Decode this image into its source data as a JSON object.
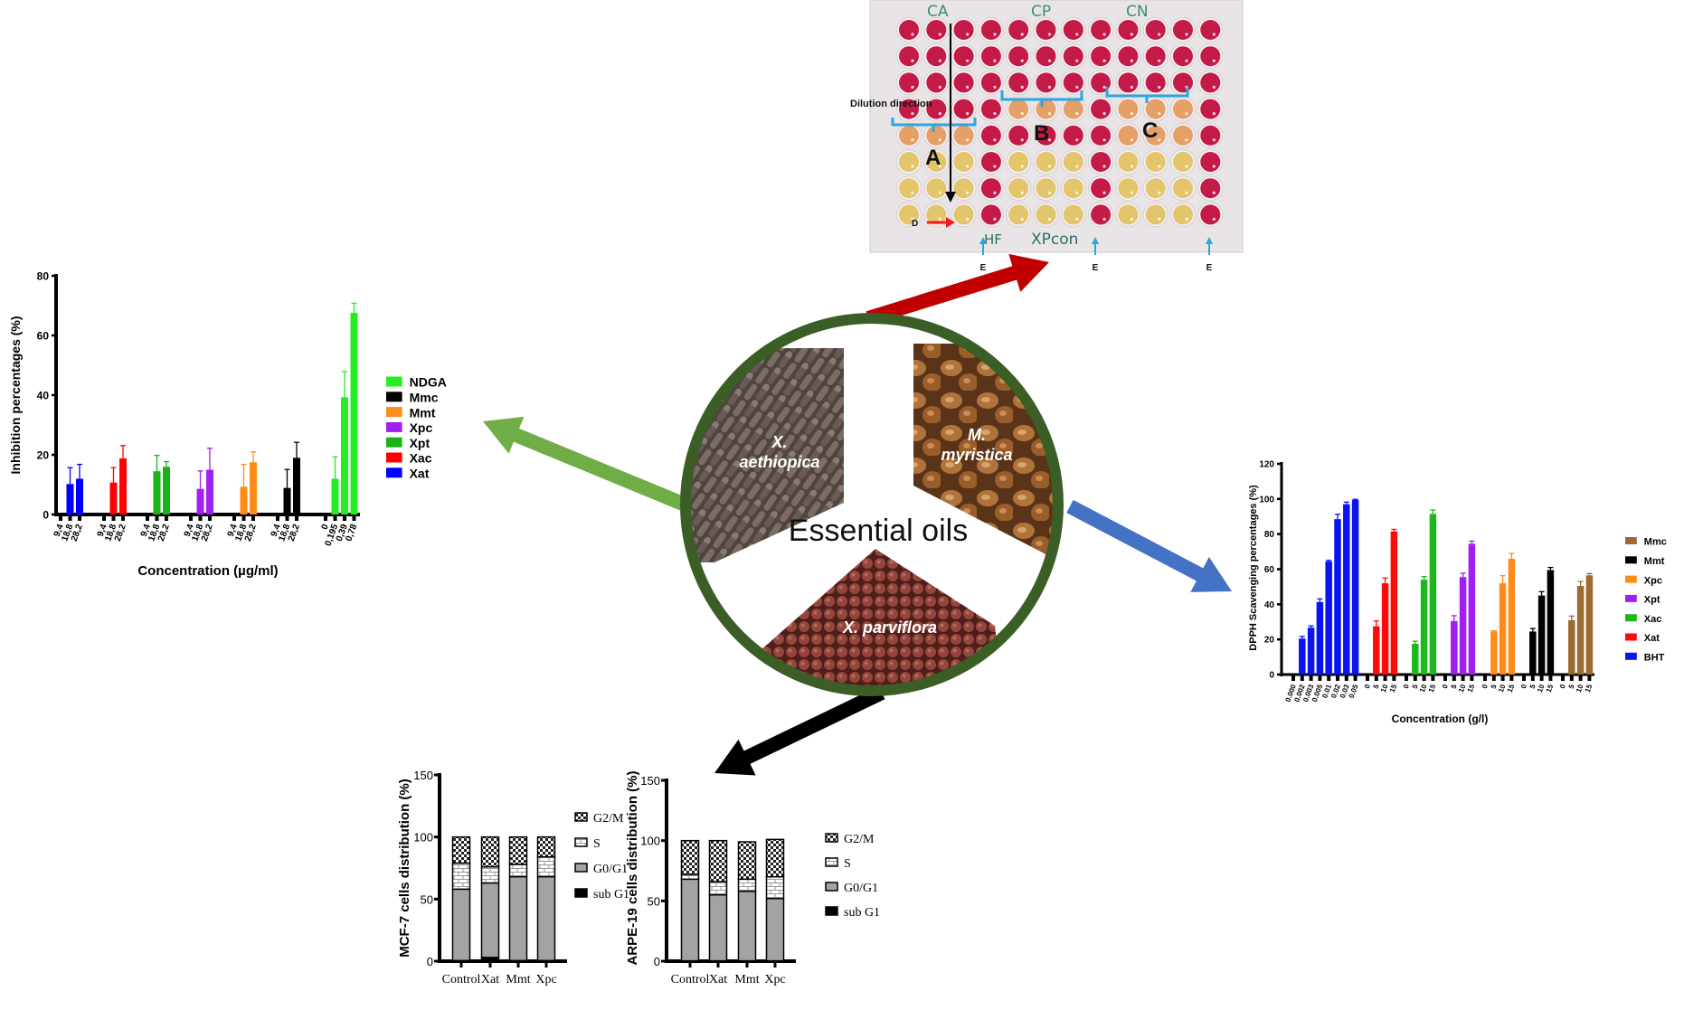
{
  "center": {
    "title": "Essential oils",
    "species": [
      "X. aethiopica",
      "M. myristica",
      "X. parviflora"
    ],
    "ring_color": "#3b5e27"
  },
  "arrows": {
    "to_plate": "#c00000",
    "to_lox_chart": "#70ad47",
    "to_dpph_chart": "#4472c4",
    "to_cell_cycle": "#000000"
  },
  "plate": {
    "column_labels": [
      "CA",
      "CP",
      "CN"
    ],
    "bottom_labels": [
      "HF",
      "XPcon"
    ],
    "dilution_label": "Dilution direction",
    "zones": [
      "A",
      "B",
      "C"
    ],
    "d_label": "D",
    "e_label": "E",
    "well_colors": {
      "R": "#c41a48",
      "O": "#e4a067",
      "Y": "#e3c56c"
    },
    "rows": [
      "RRRRRRRRRRRR",
      "RRRRRRRRRRRR",
      "RRRRRRRRRRRR",
      "RRRROOOROOOR",
      "OOORRRRROOOR",
      "YYYRYYYRYYYR",
      "YYYRYYYRYYYR",
      "YYYRYYYRYYYR"
    ]
  },
  "chart_data": [
    {
      "type": "bar",
      "ylabel": "Inhibition percentages (%)",
      "xlabel": "Concentration (µg/ml)",
      "ylim": [
        0,
        80
      ],
      "yticks": [
        0,
        20,
        40,
        60,
        80
      ],
      "legend": "right",
      "legend_order": [
        "NDGA",
        "Mmc",
        "Mmt",
        "Xpc",
        "Xpt",
        "Xac",
        "Xat"
      ],
      "series": [
        {
          "name": "Xat",
          "color": "#0000ff",
          "x": [
            "9,4",
            "18,8",
            "28,2"
          ],
          "values": [
            0,
            10.2,
            12
          ],
          "error": [
            0,
            5.5,
            4.8
          ]
        },
        {
          "name": "Xac",
          "color": "#ff0000",
          "x": [
            "9,4",
            "18,8",
            "28,2"
          ],
          "values": [
            0,
            10.7,
            18.8
          ],
          "error": [
            0,
            5.0,
            4.3
          ]
        },
        {
          "name": "Xpt",
          "color": "#19b319",
          "x": [
            "9,4",
            "18,8",
            "28,2"
          ],
          "values": [
            0,
            14.5,
            16
          ],
          "error": [
            0,
            5.3,
            1.7
          ]
        },
        {
          "name": "Xpc",
          "color": "#a020f0",
          "x": [
            "9,4",
            "18,8",
            "28,2"
          ],
          "values": [
            0,
            8.6,
            15
          ],
          "error": [
            0,
            6.0,
            7.2
          ]
        },
        {
          "name": "Mmt",
          "color": "#ff8c1a",
          "x": [
            "9,4",
            "18,8",
            "28,2"
          ],
          "values": [
            0,
            9.3,
            17.5
          ],
          "error": [
            0,
            7.5,
            3.5
          ]
        },
        {
          "name": "Mmc",
          "color": "#000000",
          "x": [
            "9,4",
            "18,8",
            "28,2"
          ],
          "values": [
            0,
            8.9,
            19
          ],
          "error": [
            0,
            6.2,
            5.2
          ]
        },
        {
          "name": "NDGA",
          "color": "#22ee22",
          "x": [
            "0",
            "0,195",
            "0,39",
            "0,78"
          ],
          "values": [
            0,
            12,
            39.3,
            67.6
          ],
          "error": [
            0,
            7.3,
            8.6,
            3.2
          ]
        }
      ]
    },
    {
      "type": "bar",
      "ylabel": "DPPH Scavenging percentages (%)",
      "xlabel": "Concentration (g/l)",
      "ylim": [
        0,
        120
      ],
      "yticks": [
        0,
        20,
        40,
        60,
        80,
        100,
        120
      ],
      "legend": "right",
      "legend_order": [
        "Mmc",
        "Mmt",
        "Xpc",
        "Xpt",
        "Xac",
        "Xat",
        "BHT"
      ],
      "series": [
        {
          "name": "BHT",
          "color": "#0a14f0",
          "x": [
            "0.000",
            "0.002",
            "0.003",
            "0.005",
            "0.01",
            "0.02",
            "0.03",
            "0.05"
          ],
          "values": [
            0,
            20.5,
            26.7,
            41.3,
            64.5,
            88.5,
            97,
            99.5
          ],
          "error": [
            0,
            1.2,
            1.0,
            1.8,
            0.6,
            2.8,
            1.2,
            0.3
          ]
        },
        {
          "name": "Xat",
          "color": "#ff0a0a",
          "x": [
            "0",
            "5",
            "10",
            "15"
          ],
          "values": [
            0,
            27.5,
            52,
            81.5
          ],
          "error": [
            0,
            3.0,
            3.0,
            1.2
          ]
        },
        {
          "name": "Xac",
          "color": "#1db81d",
          "x": [
            "0",
            "5",
            "10",
            "15"
          ],
          "values": [
            0,
            17.5,
            54,
            91.5
          ],
          "error": [
            0,
            1.5,
            1.8,
            2.2
          ]
        },
        {
          "name": "Xpt",
          "color": "#a020f0",
          "x": [
            "0",
            "5",
            "10",
            "15"
          ],
          "values": [
            0,
            30.5,
            55.5,
            74.5
          ],
          "error": [
            0,
            3.0,
            2.2,
            1.5
          ]
        },
        {
          "name": "Xpc",
          "color": "#ff8c1a",
          "x": [
            "0",
            "5",
            "10",
            "15"
          ],
          "values": [
            0,
            24.5,
            52,
            66
          ],
          "error": [
            0,
            0.4,
            4.3,
            3.0
          ]
        },
        {
          "name": "Mmt",
          "color": "#000000",
          "x": [
            "0",
            "5",
            "10",
            "15"
          ],
          "values": [
            0,
            24.5,
            45,
            59.5
          ],
          "error": [
            0,
            1.7,
            2.2,
            1.5
          ]
        },
        {
          "name": "Mmc",
          "color": "#9c6b2f",
          "x": [
            "0",
            "5",
            "10",
            "15"
          ],
          "values": [
            0,
            31,
            50.5,
            56.5
          ],
          "error": [
            0,
            2.3,
            2.5,
            1.0
          ]
        }
      ]
    },
    {
      "type": "stacked-bar",
      "ylabel": "MCF-7 cells distribution  (%)",
      "ylim": [
        0,
        150
      ],
      "yticks": [
        0,
        50,
        100,
        150
      ],
      "legend": "right",
      "categories": [
        "Control",
        "Xat",
        "Mmt",
        "Xpc"
      ],
      "legend_order": [
        "G2/M",
        "S",
        "G0/G1",
        "sub G1"
      ],
      "series": [
        {
          "name": "sub G1",
          "values": [
            0.5,
            3,
            0.5,
            0.5
          ]
        },
        {
          "name": "G0/G1",
          "values": [
            57.5,
            60,
            67.5,
            67.5
          ]
        },
        {
          "name": "S",
          "values": [
            21,
            13,
            10,
            16
          ]
        },
        {
          "name": "G2/M",
          "values": [
            21,
            24,
            22,
            16
          ]
        }
      ]
    },
    {
      "type": "stacked-bar",
      "ylabel": "ARPE-19 cells distribution  (%)",
      "ylim": [
        0,
        150
      ],
      "yticks": [
        0,
        50,
        100,
        150
      ],
      "legend": "right",
      "categories": [
        "Control",
        "Xat",
        "Mmt",
        "Xpc"
      ],
      "legend_order": [
        "G2/M",
        "S",
        "G0/G1",
        "sub G1"
      ],
      "series": [
        {
          "name": "sub G1",
          "values": [
            0.3,
            0.3,
            0.3,
            0.3
          ]
        },
        {
          "name": "G0/G1",
          "values": [
            67.7,
            54.7,
            57.7,
            51.7
          ]
        },
        {
          "name": "S",
          "values": [
            4,
            11,
            10,
            18
          ]
        },
        {
          "name": "G2/M",
          "values": [
            28,
            34,
            31,
            31
          ]
        }
      ]
    }
  ]
}
